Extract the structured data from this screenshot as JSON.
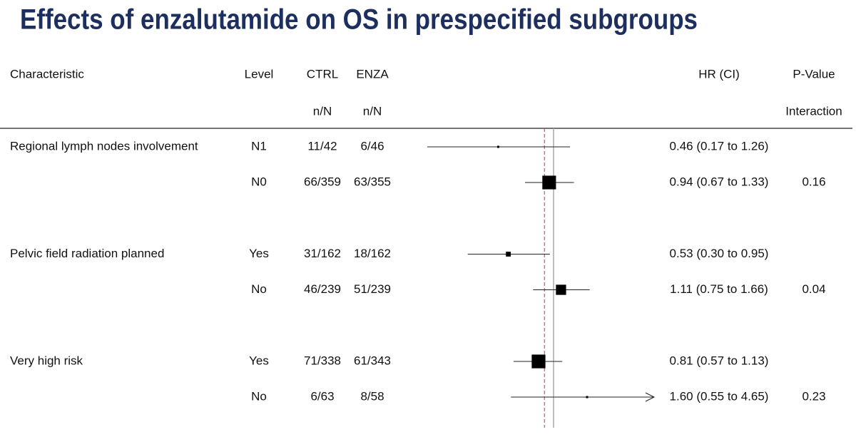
{
  "chart_data": {
    "type": "forest",
    "title": "Effects of enzalutamide on OS in prespecified subgroups",
    "columns": [
      "Characteristic",
      "Level",
      "CTRL",
      "ENZA",
      "HR (CI)",
      "P-Value"
    ],
    "subcolumns": [
      "n/N",
      "n/N",
      "Interaction"
    ],
    "xlim": [
      0.1,
      4.1
    ],
    "log_scale": true,
    "null_line": 1,
    "pooled_hr": 0.88,
    "groups": [
      {
        "name": "Regional lymph nodes involvement",
        "rows": [
          {
            "level": "N1",
            "ctrl": "11/42",
            "enza": "6/46",
            "hr": 0.46,
            "lo": 0.17,
            "hi": 1.26,
            "hr_label": "0.46 (0.17 to 1.26)",
            "p": null
          },
          {
            "level": "N0",
            "ctrl": "66/359",
            "enza": "63/355",
            "hr": 0.94,
            "lo": 0.67,
            "hi": 1.33,
            "hr_label": "0.94 (0.67 to 1.33)",
            "p": "0.16"
          }
        ]
      },
      {
        "name": "Pelvic field radiation planned",
        "rows": [
          {
            "level": "Yes",
            "ctrl": "31/162",
            "enza": "18/162",
            "hr": 0.53,
            "lo": 0.3,
            "hi": 0.95,
            "hr_label": "0.53 (0.30 to 0.95)",
            "p": null
          },
          {
            "level": "No",
            "ctrl": "46/239",
            "enza": "51/239",
            "hr": 1.11,
            "lo": 0.75,
            "hi": 1.66,
            "hr_label": "1.11 (0.75 to 1.66)",
            "p": "0.04"
          }
        ]
      },
      {
        "name": "Very high risk",
        "rows": [
          {
            "level": "Yes",
            "ctrl": "71/338",
            "enza": "61/343",
            "hr": 0.81,
            "lo": 0.57,
            "hi": 1.13,
            "hr_label": "0.81 (0.57 to 1.13)",
            "p": null
          },
          {
            "level": "No",
            "ctrl": "6/63",
            "enza": "8/58",
            "hr": 1.6,
            "lo": 0.55,
            "hi": 4.65,
            "hr_label": "1.60 (0.55 to 4.65)",
            "p": "0.23"
          }
        ]
      }
    ]
  }
}
